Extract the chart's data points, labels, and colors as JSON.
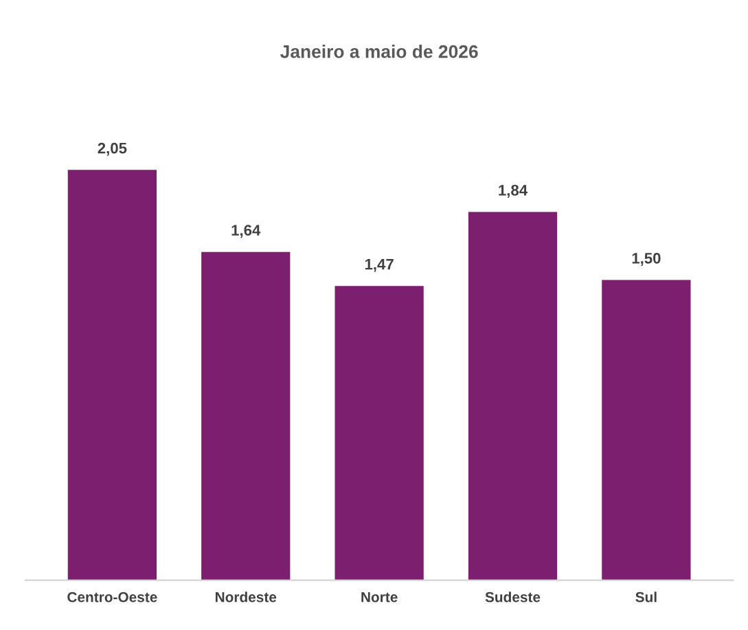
{
  "chart_data": {
    "type": "bar",
    "title": "Janeiro a maio de 2026",
    "categories": [
      "Centro-Oeste",
      "Nordeste",
      "Norte",
      "Sudeste",
      "Sul"
    ],
    "values": [
      2.05,
      1.64,
      1.47,
      1.84,
      1.5
    ],
    "value_labels": [
      "2,05",
      "1,64",
      "1,47",
      "1,84",
      "1,50"
    ],
    "color": "#7b1f6e",
    "grid": false,
    "legend": false,
    "tick_labels": "x"
  }
}
